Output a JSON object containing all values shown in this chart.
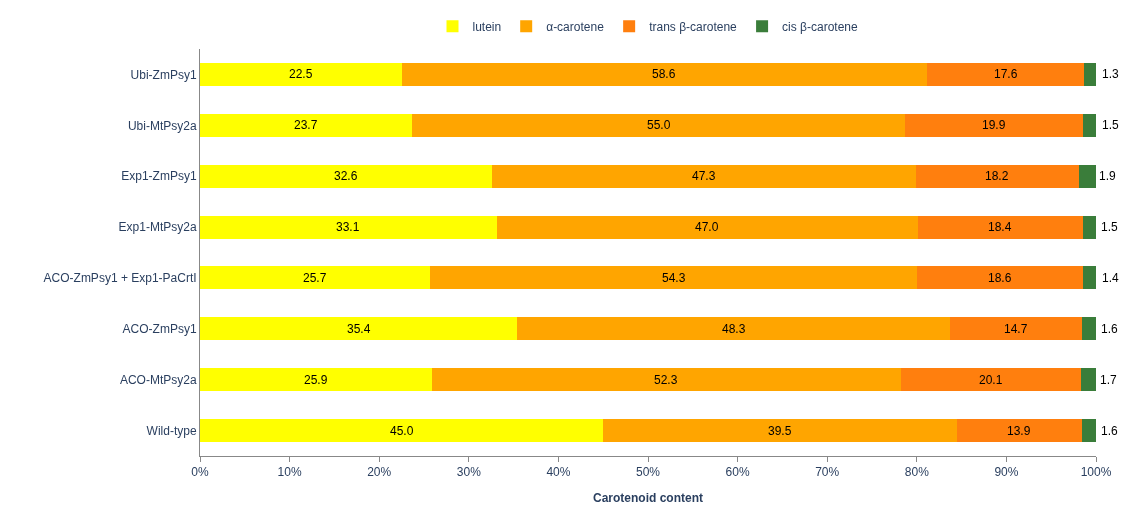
{
  "chart_data": {
    "type": "bar",
    "orientation": "horizontal",
    "stacked": true,
    "xlabel": "Carotenoid content",
    "legend": "top",
    "categories": [
      "Ubi-ZmPsy1",
      "Ubi-MtPsy2a",
      "Exp1-ZmPsy1",
      "Exp1-MtPsy2a",
      "ACO-ZmPsy1 + Exp1-PaCrtI",
      "ACO-ZmPsy1",
      "ACO-MtPsy2a",
      "Wild-type"
    ],
    "xlim": [
      0,
      100
    ],
    "xticks": [
      {
        "value": 0,
        "label": "0%"
      },
      {
        "value": 10,
        "label": "10%"
      },
      {
        "value": 20,
        "label": "20%"
      },
      {
        "value": 30,
        "label": "30%"
      },
      {
        "value": 40,
        "label": "40%"
      },
      {
        "value": 50,
        "label": "50%"
      },
      {
        "value": 60,
        "label": "60%"
      },
      {
        "value": 70,
        "label": "70%"
      },
      {
        "value": 80,
        "label": "80%"
      },
      {
        "value": 90,
        "label": "90%"
      },
      {
        "value": 100,
        "label": "100%"
      }
    ],
    "series": [
      {
        "name": "lutein",
        "color": "#ffff00",
        "values": [
          22.5,
          23.7,
          32.6,
          33.1,
          25.7,
          35.4,
          25.9,
          45.0
        ],
        "value_labels": [
          "22.5",
          "23.7",
          "32.6",
          "33.1",
          "25.7",
          "35.4",
          "25.9",
          "45.0"
        ]
      },
      {
        "name": "α-carotene",
        "color": "#ffa500",
        "values": [
          58.6,
          55.0,
          47.3,
          47.0,
          54.3,
          48.3,
          52.3,
          39.5
        ],
        "value_labels": [
          "58.6",
          "55.0",
          "47.3",
          "47.0",
          "54.3",
          "48.3",
          "52.3",
          "39.5"
        ]
      },
      {
        "name": "trans β-carotene",
        "color": "#ff7f0e",
        "values": [
          17.6,
          19.9,
          18.2,
          18.4,
          18.6,
          14.7,
          20.1,
          13.9
        ],
        "value_labels": [
          "17.6",
          "19.9",
          "18.2",
          "18.4",
          "18.6",
          "14.7",
          "20.1",
          "13.9"
        ]
      },
      {
        "name": "cis β-carotene",
        "color": "#3a7d3a",
        "values": [
          1.3,
          1.5,
          1.9,
          1.5,
          1.4,
          1.6,
          1.7,
          1.6
        ],
        "value_labels": [
          "1.3",
          "1.5",
          "1.9",
          "1.5",
          "1.4",
          "1.6",
          "1.7",
          "1.6"
        ]
      }
    ]
  }
}
